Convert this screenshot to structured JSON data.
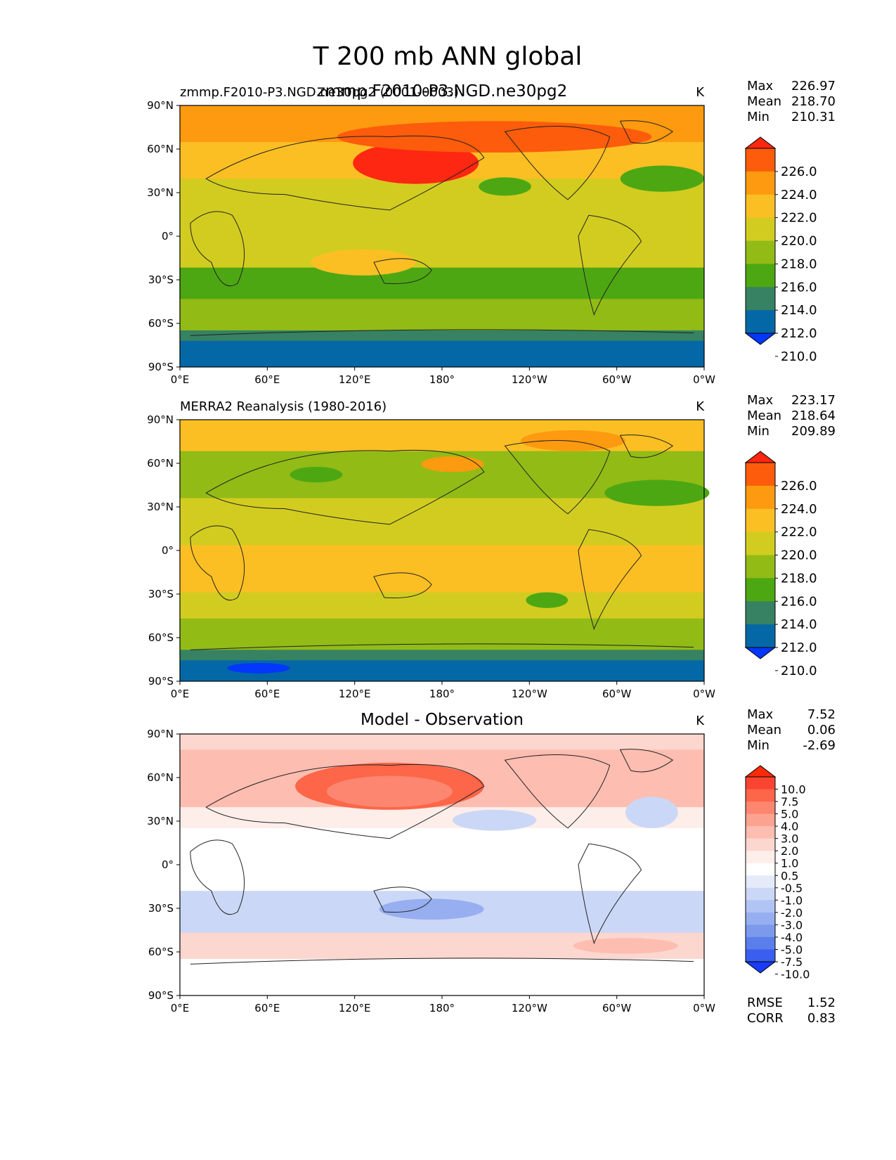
{
  "figure": {
    "title": "T 200 mb ANN global"
  },
  "chart_data": [
    {
      "type": "heatmap",
      "title": "zmmp.F2010-P3.NGD.ne30pg2",
      "subtitle_left": "zmmp.F2010-P3.NGD.ne30pg2 (0001-0003)",
      "units": "K",
      "stats": [
        {
          "label": "Max",
          "value": "226.97"
        },
        {
          "label": "Mean",
          "value": "218.70"
        },
        {
          "label": "Min",
          "value": "210.31"
        }
      ],
      "colorbar": {
        "levels": [
          "226.0",
          "224.0",
          "222.0",
          "220.0",
          "218.0",
          "216.0",
          "214.0",
          "212.0",
          "210.0"
        ],
        "colors": [
          "#fe2712",
          "#fc5c0b",
          "#fd9a0f",
          "#fbbf24",
          "#d2cc20",
          "#92bb16",
          "#4da713",
          "#368262",
          "#0568a6",
          "#0337f9"
        ]
      },
      "xticks": [
        "0°E",
        "60°E",
        "120°E",
        "180°",
        "120°W",
        "60°W",
        "0°W"
      ],
      "yticks": [
        "90°N",
        "60°N",
        "30°N",
        "0°",
        "30°S",
        "60°S",
        "90°S"
      ],
      "xlim": [
        0,
        360
      ],
      "ylim": [
        -90,
        90
      ]
    },
    {
      "type": "heatmap",
      "title": "",
      "subtitle_left": "MERRA2 Reanalysis (1980-2016)",
      "units": "K",
      "stats": [
        {
          "label": "Max",
          "value": "223.17"
        },
        {
          "label": "Mean",
          "value": "218.64"
        },
        {
          "label": "Min",
          "value": "209.89"
        }
      ],
      "colorbar": {
        "levels": [
          "226.0",
          "224.0",
          "222.0",
          "220.0",
          "218.0",
          "216.0",
          "214.0",
          "212.0",
          "210.0"
        ],
        "colors": [
          "#fe2712",
          "#fc5c0b",
          "#fd9a0f",
          "#fbbf24",
          "#d2cc20",
          "#92bb16",
          "#4da713",
          "#368262",
          "#0568a6",
          "#0337f9"
        ]
      },
      "xticks": [
        "0°E",
        "60°E",
        "120°E",
        "180°",
        "120°W",
        "60°W",
        "0°W"
      ],
      "yticks": [
        "90°N",
        "60°N",
        "30°N",
        "0°",
        "30°S",
        "60°S",
        "90°S"
      ],
      "xlim": [
        0,
        360
      ],
      "ylim": [
        -90,
        90
      ]
    },
    {
      "type": "heatmap",
      "title": "Model - Observation",
      "subtitle_left": "",
      "units": "K",
      "stats": [
        {
          "label": "Max",
          "value": "7.52"
        },
        {
          "label": "Mean",
          "value": "0.06"
        },
        {
          "label": "Min",
          "value": "-2.69"
        }
      ],
      "metrics": [
        {
          "label": "RMSE",
          "value": "1.52"
        },
        {
          "label": "CORR",
          "value": "0.83"
        }
      ],
      "colorbar": {
        "levels": [
          "10.0",
          "7.5",
          "5.0",
          "4.0",
          "3.0",
          "2.0",
          "1.0",
          "0.5",
          "-0.5",
          "-1.0",
          "-2.0",
          "-3.0",
          "-4.0",
          "-5.0",
          "-7.5",
          "-10.0"
        ],
        "colors": [
          "#ff2a0a",
          "#fa4431",
          "#fd6648",
          "#fc8670",
          "#fca290",
          "#fdbdb1",
          "#fcd7cf",
          "#fdeeea",
          "#ffffff",
          "#e5ebf9",
          "#cbd7f6",
          "#b1c4f3",
          "#97aff0",
          "#7d99ec",
          "#5a7eea",
          "#3a5ff0",
          "#1a3cf7"
        ]
      },
      "xticks": [
        "0°E",
        "60°E",
        "120°E",
        "180°",
        "120°W",
        "60°W",
        "0°W"
      ],
      "yticks": [
        "90°N",
        "60°N",
        "30°N",
        "0°",
        "30°S",
        "60°S",
        "90°S"
      ],
      "xlim": [
        0,
        360
      ],
      "ylim": [
        -90,
        90
      ]
    }
  ]
}
